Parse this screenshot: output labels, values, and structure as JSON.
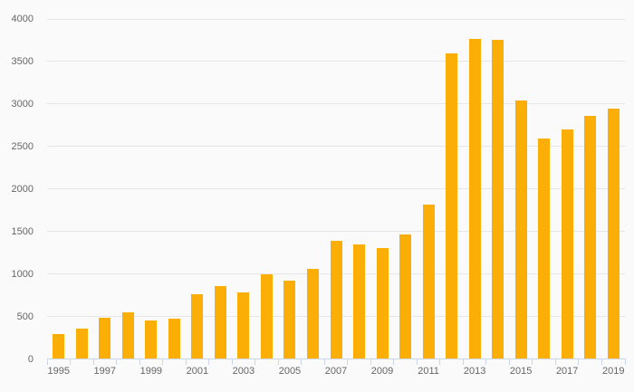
{
  "chart_data": {
    "type": "bar",
    "title": "",
    "xlabel": "",
    "ylabel": "",
    "categories": [
      "1995",
      "1996",
      "1997",
      "1998",
      "1999",
      "2000",
      "2001",
      "2002",
      "2003",
      "2004",
      "2005",
      "2006",
      "2007",
      "2008",
      "2009",
      "2010",
      "2011",
      "2012",
      "2013",
      "2014",
      "2015",
      "2016",
      "2017",
      "2018",
      "2019"
    ],
    "values": [
      295,
      360,
      485,
      550,
      455,
      470,
      765,
      855,
      780,
      995,
      925,
      1055,
      1385,
      1345,
      1305,
      1470,
      1820,
      3600,
      3770,
      3760,
      3040,
      2590,
      2700,
      2855,
      2950
    ],
    "ylim": [
      0,
      4000
    ],
    "ytick_step": 500,
    "xlabel_step": 2,
    "grid": true,
    "legend": "none",
    "colors": {
      "bar": "#faae06",
      "grid": "#e6e6e6",
      "axis": "#ccd6eb",
      "label": "#666666",
      "background": "#fafafa"
    }
  }
}
